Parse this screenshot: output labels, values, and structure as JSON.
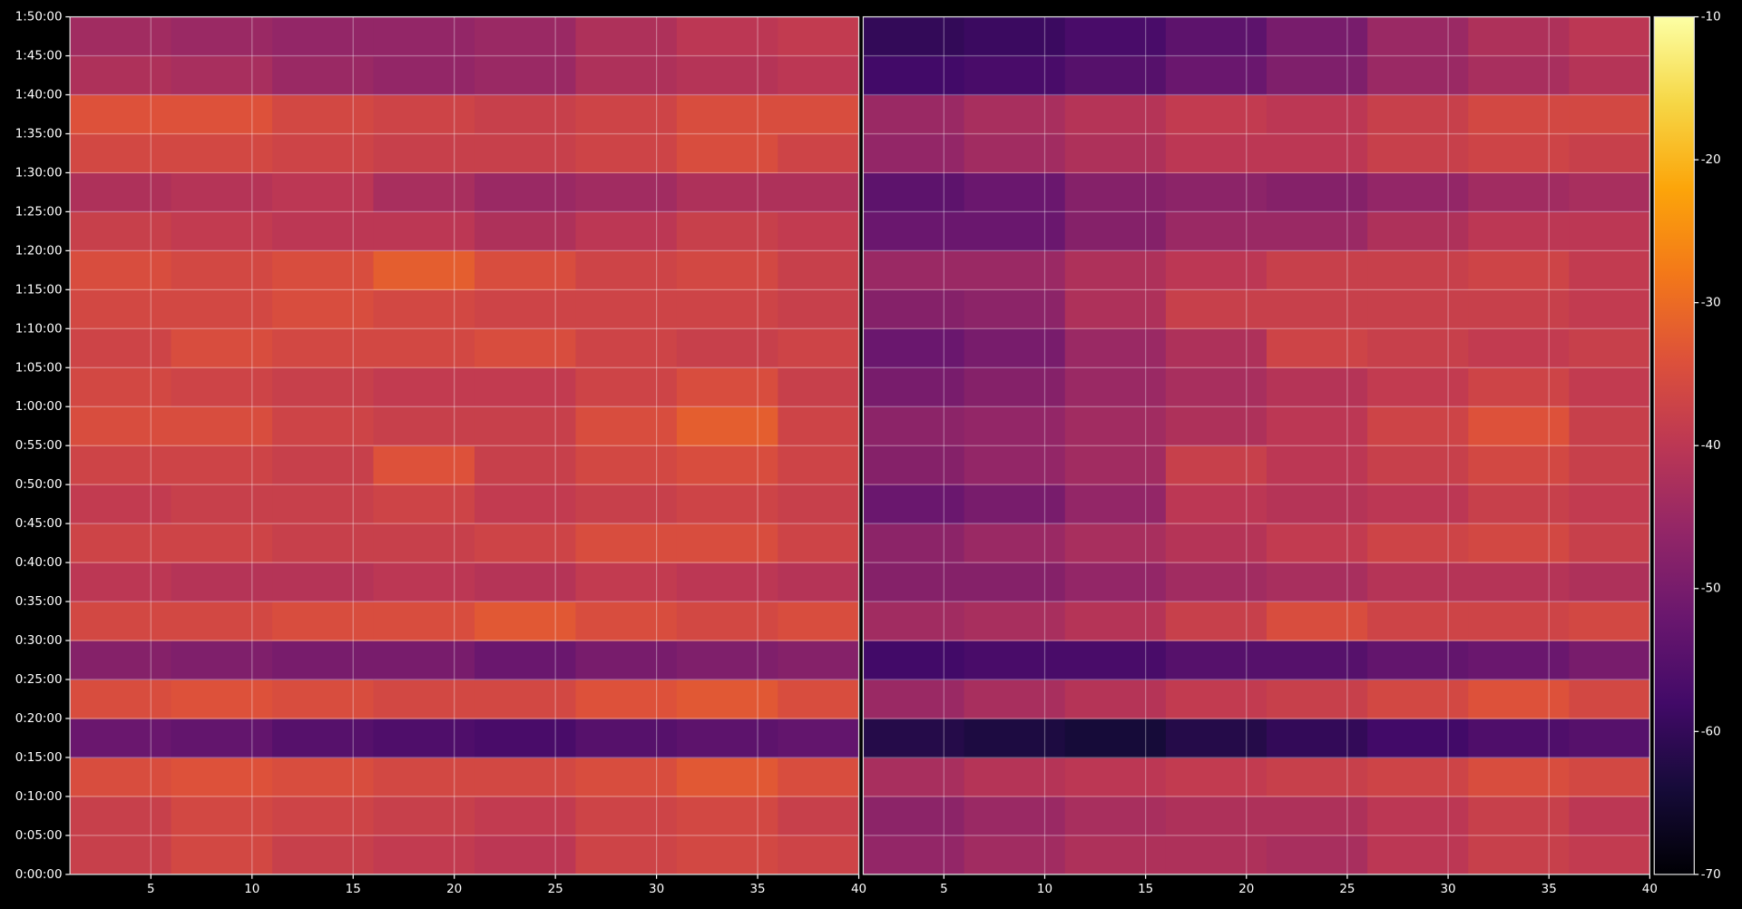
{
  "chart_data": [
    {
      "type": "heatmap",
      "colormap": "inferno",
      "grid": true,
      "xbins": [
        1,
        6,
        11,
        16,
        21,
        26,
        31,
        36,
        40
      ],
      "ybins": [
        0,
        300,
        600,
        900,
        1200,
        1500,
        1800,
        2100,
        2400,
        2700,
        3000,
        3300,
        3600,
        3900,
        4200,
        4500,
        4800,
        5100,
        5400,
        5700,
        6000,
        6300,
        6600
      ],
      "xlim": [
        1,
        40
      ],
      "xticks": [
        5,
        10,
        15,
        20,
        25,
        30,
        35,
        40
      ],
      "ylim": [
        0,
        6600
      ],
      "yticks": [
        {
          "value": 0,
          "label": "0:00:00"
        },
        {
          "value": 300,
          "label": "0:05:00"
        },
        {
          "value": 600,
          "label": "0:10:00"
        },
        {
          "value": 900,
          "label": "0:15:00"
        },
        {
          "value": 1200,
          "label": "0:20:00"
        },
        {
          "value": 1500,
          "label": "0:25:00"
        },
        {
          "value": 1800,
          "label": "0:30:00"
        },
        {
          "value": 2100,
          "label": "0:35:00"
        },
        {
          "value": 2400,
          "label": "0:40:00"
        },
        {
          "value": 2700,
          "label": "0:45:00"
        },
        {
          "value": 3000,
          "label": "0:50:00"
        },
        {
          "value": 3300,
          "label": "0:55:00"
        },
        {
          "value": 3600,
          "label": "1:00:00"
        },
        {
          "value": 3900,
          "label": "1:05:00"
        },
        {
          "value": 4200,
          "label": "1:10:00"
        },
        {
          "value": 4500,
          "label": "1:15:00"
        },
        {
          "value": 4800,
          "label": "1:20:00"
        },
        {
          "value": 5100,
          "label": "1:25:00"
        },
        {
          "value": 5400,
          "label": "1:30:00"
        },
        {
          "value": 5700,
          "label": "1:35:00"
        },
        {
          "value": 6000,
          "label": "1:40:00"
        },
        {
          "value": 6300,
          "label": "1:45:00"
        },
        {
          "value": 6600,
          "label": "1:50:00"
        }
      ],
      "zlim": [
        -70,
        -10
      ],
      "values": [
        [
          -38,
          -36,
          -38,
          -39,
          -40,
          -37,
          -36,
          -37
        ],
        [
          -38,
          -36,
          -37,
          -38,
          -39,
          -37,
          -36,
          -38
        ],
        [
          -35,
          -34,
          -35,
          -36,
          -36,
          -35,
          -33,
          -35
        ],
        [
          -52,
          -53,
          -55,
          -56,
          -57,
          -55,
          -54,
          -53
        ],
        [
          -35,
          -34,
          -35,
          -36,
          -36,
          -34,
          -33,
          -35
        ],
        [
          -48,
          -49,
          -50,
          -50,
          -52,
          -50,
          -49,
          -48
        ],
        [
          -36,
          -36,
          -35,
          -35,
          -33,
          -35,
          -36,
          -35
        ],
        [
          -40,
          -41,
          -41,
          -40,
          -41,
          -39,
          -40,
          -41
        ],
        [
          -37,
          -37,
          -38,
          -38,
          -37,
          -35,
          -35,
          -37
        ],
        [
          -39,
          -38,
          -38,
          -37,
          -39,
          -38,
          -37,
          -38
        ],
        [
          -37,
          -37,
          -38,
          -34,
          -38,
          -36,
          -35,
          -37
        ],
        [
          -35,
          -35,
          -37,
          -38,
          -38,
          -35,
          -32,
          -37
        ],
        [
          -36,
          -37,
          -38,
          -39,
          -39,
          -37,
          -35,
          -38
        ],
        [
          -37,
          -35,
          -36,
          -36,
          -35,
          -37,
          -38,
          -37
        ],
        [
          -36,
          -36,
          -35,
          -36,
          -37,
          -37,
          -37,
          -38
        ],
        [
          -35,
          -36,
          -35,
          -32,
          -35,
          -37,
          -36,
          -38
        ],
        [
          -38,
          -39,
          -40,
          -40,
          -42,
          -40,
          -38,
          -39
        ],
        [
          -42,
          -41,
          -40,
          -43,
          -45,
          -44,
          -42,
          -42
        ],
        [
          -36,
          -36,
          -37,
          -38,
          -38,
          -37,
          -35,
          -37
        ],
        [
          -34,
          -34,
          -36,
          -37,
          -38,
          -37,
          -35,
          -35
        ],
        [
          -42,
          -43,
          -45,
          -46,
          -45,
          -42,
          -41,
          -40
        ],
        [
          -44,
          -45,
          -46,
          -46,
          -45,
          -42,
          -40,
          -39
        ]
      ]
    },
    {
      "type": "heatmap",
      "colormap": "inferno",
      "grid": true,
      "xbins": [
        1,
        6,
        11,
        16,
        21,
        26,
        31,
        36,
        40
      ],
      "ybins": [
        0,
        300,
        600,
        900,
        1200,
        1500,
        1800,
        2100,
        2400,
        2700,
        3000,
        3300,
        3600,
        3900,
        4200,
        4500,
        4800,
        5100,
        5400,
        5700,
        6000,
        6300,
        6600
      ],
      "xlim": [
        1,
        40
      ],
      "xticks": [
        5,
        10,
        15,
        20,
        25,
        30,
        35,
        40
      ],
      "ylim": [
        0,
        6600
      ],
      "yticks": [
        0,
        300,
        600,
        900,
        1200,
        1500,
        1800,
        2100,
        2400,
        2700,
        3000,
        3300,
        3600,
        3900,
        4200,
        4500,
        4800,
        5100,
        5400,
        5700,
        6000,
        6300,
        6600
      ],
      "zlim": [
        -70,
        -10
      ],
      "zticks": [
        -70,
        -60,
        -50,
        -40,
        -30,
        -20,
        -10
      ],
      "colorbar": true,
      "values": [
        [
          -46,
          -44,
          -42,
          -42,
          -43,
          -40,
          -38,
          -39
        ],
        [
          -47,
          -45,
          -43,
          -42,
          -42,
          -40,
          -38,
          -40
        ],
        [
          -43,
          -41,
          -40,
          -39,
          -38,
          -37,
          -35,
          -36
        ],
        [
          -62,
          -63,
          -64,
          -62,
          -60,
          -58,
          -56,
          -55
        ],
        [
          -45,
          -43,
          -41,
          -39,
          -38,
          -36,
          -34,
          -36
        ],
        [
          -58,
          -57,
          -57,
          -55,
          -55,
          -53,
          -52,
          -50
        ],
        [
          -44,
          -43,
          -41,
          -38,
          -35,
          -37,
          -37,
          -36
        ],
        [
          -48,
          -48,
          -46,
          -44,
          -43,
          -41,
          -41,
          -42
        ],
        [
          -47,
          -45,
          -43,
          -41,
          -39,
          -37,
          -36,
          -38
        ],
        [
          -52,
          -50,
          -46,
          -40,
          -41,
          -40,
          -38,
          -39
        ],
        [
          -48,
          -46,
          -44,
          -38,
          -40,
          -38,
          -36,
          -38
        ],
        [
          -47,
          -46,
          -44,
          -42,
          -40,
          -37,
          -34,
          -38
        ],
        [
          -50,
          -48,
          -45,
          -43,
          -41,
          -39,
          -37,
          -39
        ],
        [
          -52,
          -50,
          -45,
          -42,
          -37,
          -38,
          -39,
          -38
        ],
        [
          -48,
          -47,
          -42,
          -38,
          -38,
          -38,
          -38,
          -39
        ],
        [
          -45,
          -45,
          -42,
          -40,
          -38,
          -38,
          -37,
          -39
        ],
        [
          -52,
          -52,
          -48,
          -45,
          -45,
          -42,
          -40,
          -40
        ],
        [
          -54,
          -52,
          -48,
          -47,
          -48,
          -46,
          -44,
          -43
        ],
        [
          -46,
          -44,
          -42,
          -40,
          -40,
          -38,
          -37,
          -38
        ],
        [
          -45,
          -43,
          -41,
          -39,
          -40,
          -38,
          -36,
          -36
        ],
        [
          -58,
          -57,
          -55,
          -52,
          -49,
          -45,
          -43,
          -41
        ],
        [
          -60,
          -59,
          -57,
          -54,
          -50,
          -45,
          -42,
          -40
        ]
      ]
    }
  ]
}
